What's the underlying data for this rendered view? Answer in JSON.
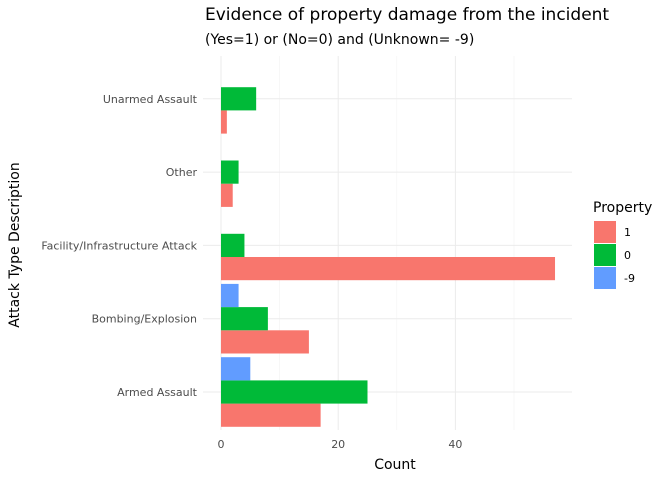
{
  "chart_data": {
    "type": "bar",
    "orientation": "horizontal",
    "title": "Evidence of property damage from the incident",
    "subtitle": "(Yes=1) or (No=0) and (Unknown= -9)",
    "xlabel": "Count",
    "ylabel": "Attack Type Description",
    "categories": [
      "Armed Assault",
      "Bombing/Explosion",
      "Facility/Infrastructure Attack",
      "Other",
      "Unarmed Assault"
    ],
    "series": [
      {
        "name": "1",
        "color": "#F8766D",
        "values": [
          17,
          15,
          57,
          2,
          1
        ]
      },
      {
        "name": "0",
        "color": "#00BA38",
        "values": [
          25,
          8,
          4,
          3,
          6
        ]
      },
      {
        "name": "-9",
        "color": "#619CFF",
        "values": [
          5,
          3,
          0,
          0,
          0
        ]
      }
    ],
    "xlim": [
      0,
      60
    ],
    "x_ticks": [
      0,
      20,
      40
    ],
    "grid": true,
    "legend": {
      "title": "Property",
      "position": "right",
      "entries": [
        "1",
        "0",
        "-9"
      ]
    }
  }
}
